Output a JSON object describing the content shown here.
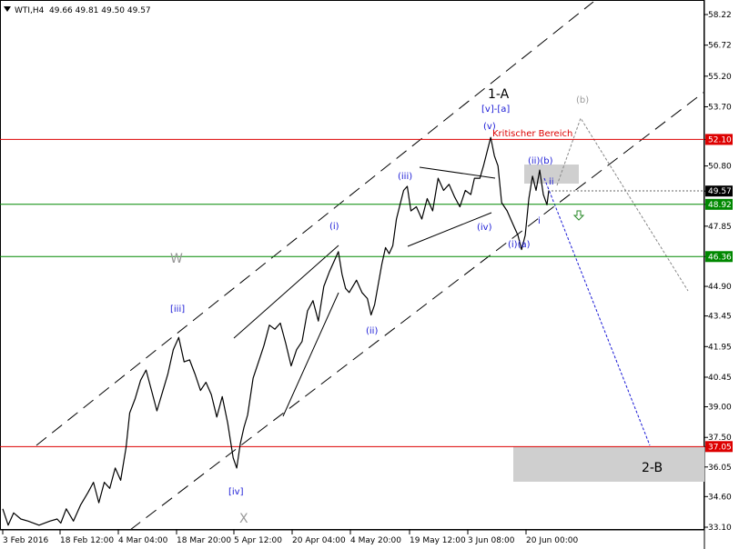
{
  "header": {
    "symbol": "WTI,H4",
    "ohlc": "49.66 49.81 49.50 49.57"
  },
  "chart_data": {
    "type": "line",
    "ylim": [
      33.1,
      58.8
    ],
    "y_ticks": [
      "58.22",
      "56.72",
      "55.20",
      "53.70",
      "52.10",
      "50.80",
      "49.57",
      "48.92",
      "47.85",
      "46.36",
      "44.90",
      "43.45",
      "41.95",
      "40.45",
      "39.00",
      "37.50",
      "37.05",
      "36.05",
      "34.60",
      "33.10"
    ],
    "x_ticks": [
      "3 Feb 2016",
      "18 Feb 12:00",
      "4 Mar 04:00",
      "18 Mar 20:00",
      "5 Apr 12:00",
      "20 Apr 04:00",
      "4 May 20:00",
      "19 May 12:00",
      "3 Jun 08:00",
      "20 Jun 00:00"
    ],
    "price_points": [
      [
        0,
        34.0
      ],
      [
        6,
        33.2
      ],
      [
        12,
        33.8
      ],
      [
        20,
        33.5
      ],
      [
        28,
        33.4
      ],
      [
        40,
        33.2
      ],
      [
        52,
        33.4
      ],
      [
        60,
        33.5
      ],
      [
        64,
        33.3
      ],
      [
        70,
        34.0
      ],
      [
        78,
        33.4
      ],
      [
        86,
        34.2
      ],
      [
        94,
        34.8
      ],
      [
        100,
        35.3
      ],
      [
        106,
        34.3
      ],
      [
        112,
        35.3
      ],
      [
        118,
        35.0
      ],
      [
        124,
        36.0
      ],
      [
        130,
        35.4
      ],
      [
        136,
        37.0
      ],
      [
        140,
        38.7
      ],
      [
        146,
        39.4
      ],
      [
        152,
        40.3
      ],
      [
        158,
        40.8
      ],
      [
        164,
        39.8
      ],
      [
        170,
        38.8
      ],
      [
        176,
        39.7
      ],
      [
        182,
        40.6
      ],
      [
        188,
        41.8
      ],
      [
        194,
        42.4
      ],
      [
        200,
        41.2
      ],
      [
        206,
        41.3
      ],
      [
        212,
        40.6
      ],
      [
        218,
        39.8
      ],
      [
        224,
        40.2
      ],
      [
        230,
        39.6
      ],
      [
        236,
        38.5
      ],
      [
        242,
        39.5
      ],
      [
        248,
        38.2
      ],
      [
        254,
        36.5
      ],
      [
        258,
        36.0
      ],
      [
        262,
        37.2
      ],
      [
        266,
        38.0
      ],
      [
        270,
        38.6
      ],
      [
        276,
        40.4
      ],
      [
        282,
        41.2
      ],
      [
        288,
        42.0
      ],
      [
        294,
        43.0
      ],
      [
        300,
        42.8
      ],
      [
        306,
        43.1
      ],
      [
        312,
        42.1
      ],
      [
        318,
        41.0
      ],
      [
        324,
        41.8
      ],
      [
        330,
        42.2
      ],
      [
        336,
        43.7
      ],
      [
        342,
        44.2
      ],
      [
        348,
        43.2
      ],
      [
        354,
        44.9
      ],
      [
        360,
        45.6
      ],
      [
        366,
        46.2
      ],
      [
        370,
        46.6
      ],
      [
        374,
        45.5
      ],
      [
        378,
        44.8
      ],
      [
        382,
        44.6
      ],
      [
        386,
        44.9
      ],
      [
        390,
        45.2
      ],
      [
        396,
        44.6
      ],
      [
        402,
        44.3
      ],
      [
        406,
        43.5
      ],
      [
        410,
        44.0
      ],
      [
        414,
        45.0
      ],
      [
        418,
        46.0
      ],
      [
        422,
        46.8
      ],
      [
        426,
        46.5
      ],
      [
        430,
        46.9
      ],
      [
        434,
        48.2
      ],
      [
        438,
        48.9
      ],
      [
        442,
        49.6
      ],
      [
        446,
        49.8
      ],
      [
        450,
        48.6
      ],
      [
        456,
        48.8
      ],
      [
        462,
        48.2
      ],
      [
        468,
        49.2
      ],
      [
        474,
        48.6
      ],
      [
        480,
        50.2
      ],
      [
        486,
        49.6
      ],
      [
        492,
        49.9
      ],
      [
        498,
        49.3
      ],
      [
        504,
        48.8
      ],
      [
        510,
        49.6
      ],
      [
        516,
        49.4
      ],
      [
        520,
        50.2
      ],
      [
        526,
        50.2
      ],
      [
        530,
        50.8
      ],
      [
        534,
        51.5
      ],
      [
        538,
        52.2
      ],
      [
        542,
        51.3
      ],
      [
        546,
        50.8
      ],
      [
        550,
        49.0
      ],
      [
        556,
        48.6
      ],
      [
        562,
        48.0
      ],
      [
        568,
        47.4
      ],
      [
        572,
        46.7
      ],
      [
        576,
        47.4
      ],
      [
        580,
        49.2
      ],
      [
        584,
        50.3
      ],
      [
        588,
        49.6
      ],
      [
        592,
        50.6
      ],
      [
        596,
        49.4
      ],
      [
        600,
        48.9
      ],
      [
        602,
        49.6
      ]
    ],
    "horizontal_levels": [
      {
        "name": "Kritischer Bereich",
        "value": 52.1,
        "label": "52.10",
        "color": "#dd0000"
      },
      {
        "value": 48.92,
        "label": "48.92",
        "color": "#008800"
      },
      {
        "value": 46.36,
        "label": "46.36",
        "color": "#008800"
      },
      {
        "value": 37.05,
        "label": "37.05",
        "color": "#dd0000"
      }
    ],
    "current_price": {
      "value": 49.57,
      "label": "49.57"
    },
    "wave_labels": {
      "W": "W",
      "X": "X",
      "iii_bracket": "[iii]",
      "iv_bracket": "[iv]",
      "v_a_bracket": "[v]-[a]",
      "one_a": "1-A",
      "two_b": "2-B",
      "i": "(i)",
      "ii": "(ii)",
      "iii": "(iii)",
      "iv": "(iv)",
      "v": "(v)",
      "i_a": "(i)(a)",
      "ii_b": "(ii)(b)",
      "b_grey": "(b)",
      "small_i": "i",
      "small_ii": "ii"
    },
    "critical_zone_label": "Kritischer Bereich"
  },
  "colors": {
    "price": "#000000",
    "blue_label": "#1a1ad6",
    "red_level": "#dd0000",
    "green_level": "#008800",
    "grey_label": "#999999",
    "zone": "#cfcfcf",
    "price_tag": "#dd0000",
    "green_tag": "#008800"
  }
}
